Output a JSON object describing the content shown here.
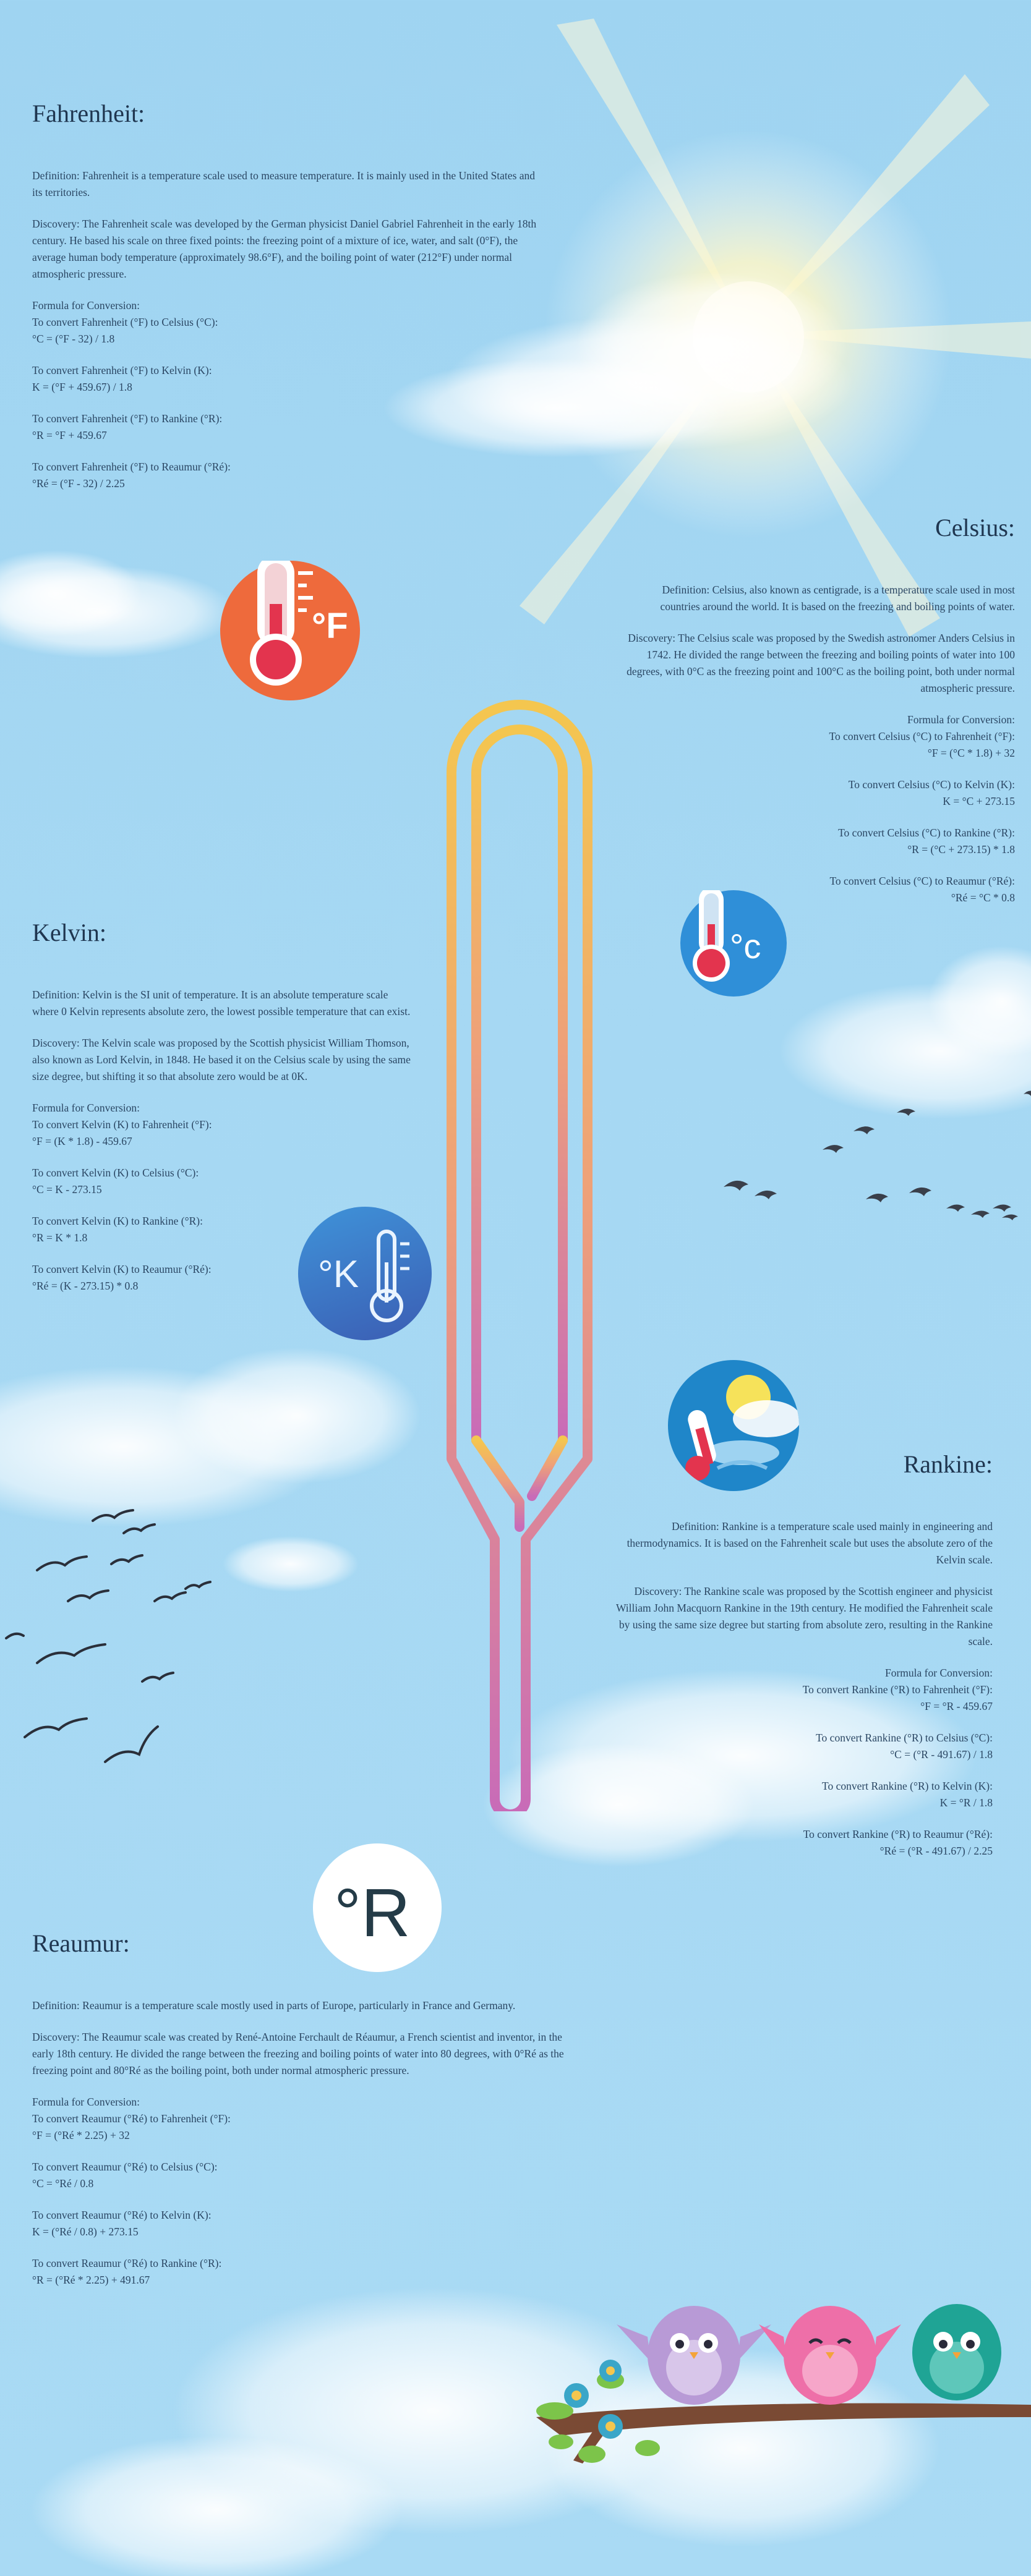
{
  "colors": {
    "sky": "#a6d8f3",
    "text": "#2a4663",
    "fahrenheit_badge": "#ee6a3c",
    "celsius_badge": "#2f8fd8",
    "kelvin_badge": "#3577c9",
    "rankine_badge": "#1f86c9",
    "thermometer_top": "#f4c64f",
    "thermometer_bottom": "#c86bb8"
  },
  "icons": [
    "sun-icon",
    "fahrenheit-icon",
    "celsius-icon",
    "kelvin-icon",
    "rankine-weather-icon",
    "reaumur-icon",
    "thermometer-icon",
    "birds-icon",
    "owls-on-branch-icon"
  ],
  "fahrenheit": {
    "title": "Fahrenheit:",
    "badge": "°F",
    "definition": "Definition: Fahrenheit is a temperature scale used to measure temperature. It is mainly used in the United States and its territories.",
    "discovery": "Discovery: The Fahrenheit scale was developed by the German physicist Daniel Gabriel Fahrenheit in the early 18th century. He based his scale on three fixed points: the freezing point of a mixture of ice, water, and salt (0°F), the average human body temperature (approximately 98.6°F), and the boiling point of water (212°F) under normal atmospheric pressure.",
    "formula_title": "Formula for Conversion:",
    "conversions": [
      {
        "label": "To convert Fahrenheit (°F) to Celsius (°C):",
        "formula": "°C = (°F - 32) / 1.8"
      },
      {
        "label": "To convert Fahrenheit (°F) to Kelvin (K):",
        "formula": "K = (°F + 459.67) / 1.8"
      },
      {
        "label": "To convert Fahrenheit (°F) to Rankine (°R):",
        "formula": "°R = °F + 459.67"
      },
      {
        "label": "To convert Fahrenheit (°F) to Reaumur (°Ré):",
        "formula": "°Ré = (°F - 32) / 2.25"
      }
    ]
  },
  "celsius": {
    "title": "Celsius:",
    "badge": "°c",
    "definition": "Definition: Celsius, also known as centigrade, is a temperature scale used in most countries around the world. It is based on the freezing and boiling points of water.",
    "discovery": "Discovery: The Celsius scale was proposed by the Swedish astronomer Anders Celsius in 1742. He divided the range between the freezing and boiling points of water into 100 degrees, with 0°C as the freezing point and 100°C as the boiling point, both under normal atmospheric pressure.",
    "formula_title": "Formula for Conversion:",
    "conversions": [
      {
        "label": "To convert Celsius (°C) to Fahrenheit (°F):",
        "formula": "°F = (°C * 1.8) + 32"
      },
      {
        "label": "To convert Celsius (°C) to Kelvin (K):",
        "formula": "K = °C + 273.15"
      },
      {
        "label": "To convert Celsius (°C) to Rankine (°R):",
        "formula": "°R = (°C + 273.15) * 1.8"
      },
      {
        "label": "To convert Celsius (°C) to Reaumur (°Ré):",
        "formula": "°Ré = °C * 0.8"
      }
    ]
  },
  "kelvin": {
    "title": "Kelvin:",
    "badge": "°K",
    "definition": "Definition: Kelvin is the SI unit of temperature. It is an absolute temperature scale where 0 Kelvin represents absolute zero, the lowest possible temperature that can exist.",
    "discovery": "Discovery: The Kelvin scale was proposed by the Scottish physicist William Thomson, also known as Lord Kelvin, in 1848. He based it on the Celsius scale by using the same size degree, but shifting it so that absolute zero would be at 0K.",
    "formula_title": "Formula for Conversion:",
    "conversions": [
      {
        "label": "To convert Kelvin (K) to Fahrenheit (°F):",
        "formula": "°F = (K * 1.8) - 459.67"
      },
      {
        "label": "To convert Kelvin (K) to Celsius (°C):",
        "formula": "°C = K - 273.15"
      },
      {
        "label": "To convert Kelvin (K) to Rankine (°R):",
        "formula": "°R = K * 1.8"
      },
      {
        "label": "To convert Kelvin (K) to Reaumur (°Ré):",
        "formula": "°Ré = (K - 273.15) * 0.8"
      }
    ]
  },
  "rankine": {
    "title": "Rankine:",
    "definition": "Definition: Rankine is a temperature scale used mainly in engineering and thermodynamics. It is based on the Fahrenheit scale but uses the absolute zero of the Kelvin scale.",
    "discovery": "Discovery: The Rankine scale was proposed by the Scottish engineer and physicist William John Macquorn Rankine in the 19th century. He modified the Fahrenheit scale by using the same size degree but starting from absolute zero, resulting in the Rankine scale.",
    "formula_title": "Formula for Conversion:",
    "conversions": [
      {
        "label": "To convert Rankine (°R) to Fahrenheit (°F):",
        "formula": "°F = °R - 459.67"
      },
      {
        "label": "To convert Rankine (°R) to Celsius (°C):",
        "formula": "°C = (°R - 491.67) / 1.8"
      },
      {
        "label": "To convert Rankine (°R) to Kelvin (K):",
        "formula": "K = °R / 1.8"
      },
      {
        "label": "To convert Rankine (°R) to Reaumur (°Ré):",
        "formula": "°Ré = (°R - 491.67) / 2.25"
      }
    ]
  },
  "reaumur": {
    "title": "Reaumur:",
    "badge": "°R",
    "definition": "Definition: Reaumur is a temperature scale mostly used in parts of Europe, particularly in France and Germany.",
    "discovery": "Discovery: The Reaumur scale was created by René-Antoine Ferchault de Réaumur, a French scientist and inventor, in the early 18th century. He divided the range between the freezing and boiling points of water into 80 degrees, with 0°Ré as the freezing point and 80°Ré as the boiling point, both under normal atmospheric pressure.",
    "formula_title": "Formula for Conversion:",
    "conversions": [
      {
        "label": "To convert Reaumur (°Ré) to Fahrenheit (°F):",
        "formula": "°F = (°Ré * 2.25) + 32"
      },
      {
        "label": "To convert Reaumur (°Ré) to Celsius (°C):",
        "formula": "°C = °Ré / 0.8"
      },
      {
        "label": "To convert Reaumur (°Ré) to Kelvin (K):",
        "formula": "K = (°Ré / 0.8) + 273.15"
      },
      {
        "label": "To convert Reaumur (°Ré) to Rankine (°R):",
        "formula": "°R = (°Ré * 2.25) + 491.67"
      }
    ]
  }
}
